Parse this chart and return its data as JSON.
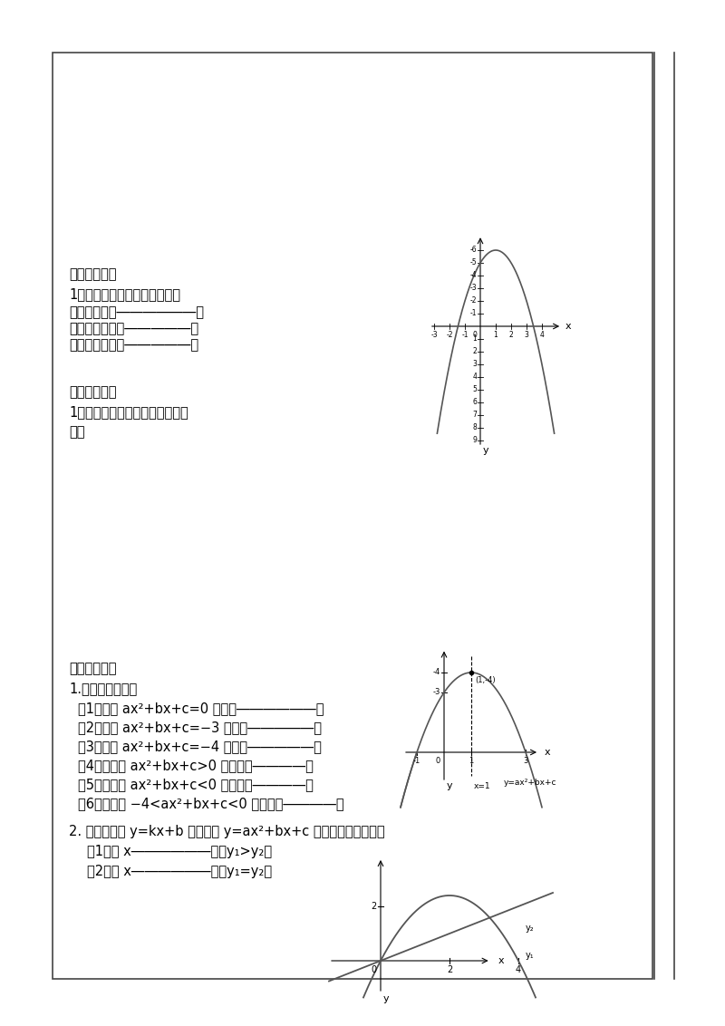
{
  "bg_color": "#ffffff",
  "section1_header": "【自学检测】",
  "section1_line1": "1、已知二次函数的图象如图，",
  "section1_line2": "则方程的解是――――――，",
  "section1_line3": "不等式的解集是―――――，",
  "section1_line4": "不等式的解集是―――――。",
  "section2_header": "【巩固训练】",
  "section2_line1": "1、利用函数图象求方程组的解。",
  "section2_line2": "解：",
  "section3_header": "【拓展延伸】",
  "section3_line1": "1.　根据图象填空",
  "section3_item1": "（1）方程 ax²+bx+c=0 的根为――――――；",
  "section3_item2": "（2）方程 ax²+bx+c=−3 的根为―――――；",
  "section3_item3": "（3）方程 ax²+bx+c=−4 的根为―――――；",
  "section3_item4": "（4）不等式 ax²+bx+c>0 的解集为――――；",
  "section3_item5": "（5）不等式 ax²+bx+c<0 的解集为――――；",
  "section3_item6": "（6）不等式 −4<ax²+bx+c<0 的解集为――――。",
  "section4_line1": "2. 如图：直线 y=kx+b 和抛物线 y=ax²+bx+c 在同一直角坐标系中",
  "section4_item1": "（1）当 x――――――时，y₁>y₂；",
  "section4_item2": "（2）当 x――――――时，y₁=y₂；"
}
